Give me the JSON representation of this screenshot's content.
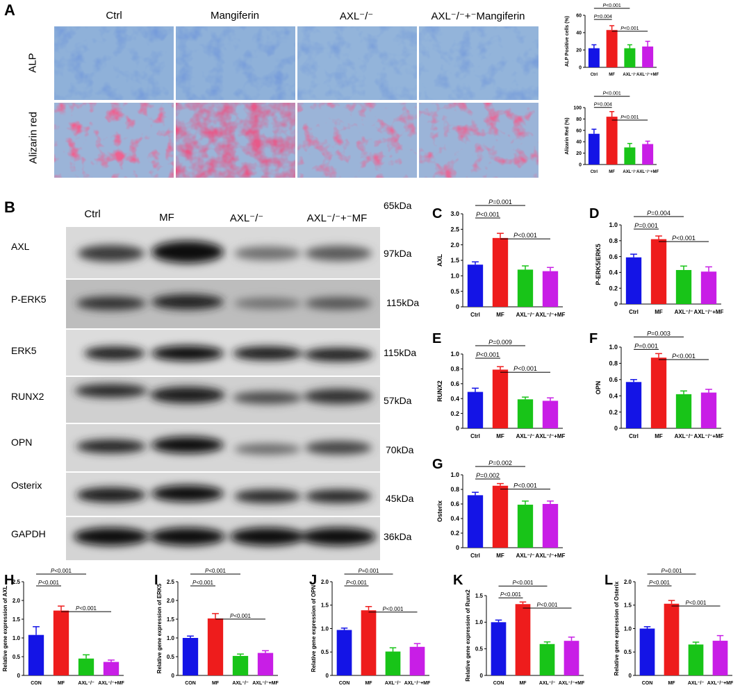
{
  "panelA": {
    "letter": "A",
    "columns": [
      "Ctrl",
      "Mangiferin",
      "AXL⁻/⁻",
      "AXL⁻/⁻+⁻Mangiferin"
    ],
    "rows": [
      "ALP",
      "Alizarin red"
    ],
    "colors": {
      "alp_bg": "#8fb1d9",
      "alp_stain": "#2f57b0",
      "ar_bg": "#9bb4d8",
      "ar_stain": "#d8234b"
    }
  },
  "panelB": {
    "letter": "B",
    "lanes": [
      "Ctrl",
      "MF",
      "AXL⁻/⁻",
      "AXL⁻/⁻+⁻MF"
    ],
    "top_kda": "65kDa",
    "rows": [
      {
        "label": "AXL",
        "kda": "97kDa"
      },
      {
        "label": "P-ERK5",
        "kda": "115kDa"
      },
      {
        "label": "ERK5",
        "kda": "115kDa"
      },
      {
        "label": "RUNX2",
        "kda": "57kDa"
      },
      {
        "label": "OPN",
        "kda": "70kDa"
      },
      {
        "label": "Osterix",
        "kda": "45kDa"
      },
      {
        "label": "GAPDH",
        "kda": "36kDa"
      }
    ]
  },
  "colors": {
    "ctrl": "#1414e6",
    "mf": "#ee1c1c",
    "axl": "#18c418",
    "axlmf": "#c81ee6"
  },
  "chart_data": [
    {
      "id": "A1",
      "type": "bar",
      "letter": "",
      "ylabel": "ALP Positive cells (%)",
      "categories": [
        "Ctrl",
        "MF",
        "AXL⁻/⁻",
        "AXL⁻/⁻+MF"
      ],
      "values": [
        22,
        43,
        22,
        24
      ],
      "errors": [
        4,
        5,
        4,
        6
      ],
      "ylim": [
        0,
        60
      ],
      "yticks": [
        "0",
        "20",
        "40",
        "60"
      ],
      "sig": [
        {
          "from": 0,
          "to": 1,
          "label": "P=0.004"
        },
        {
          "from": 0,
          "to": 2,
          "label": "P<0.001"
        },
        {
          "from": 1,
          "to": 3,
          "label": "P<0.001"
        }
      ]
    },
    {
      "id": "A2",
      "type": "bar",
      "letter": "",
      "ylabel": "Alizarin Red (%)",
      "categories": [
        "Ctrl",
        "MF",
        "AXL⁻/⁻",
        "AXL⁻/⁻+MF"
      ],
      "values": [
        54,
        84,
        30,
        36
      ],
      "errors": [
        8,
        9,
        7,
        5
      ],
      "ylim": [
        0,
        100
      ],
      "yticks": [
        "0",
        "20",
        "40",
        "60",
        "80",
        "100"
      ],
      "sig": [
        {
          "from": 0,
          "to": 1,
          "label": "P=0.004"
        },
        {
          "from": 0,
          "to": 2,
          "label": "P<0.001"
        },
        {
          "from": 1,
          "to": 3,
          "label": "P<0.001"
        }
      ]
    },
    {
      "id": "C",
      "type": "bar",
      "letter": "C",
      "ylabel": "AXL",
      "categories": [
        "Ctrl",
        "MF",
        "AXL⁻/⁻",
        "AXL⁻/⁻+MF"
      ],
      "values": [
        1.36,
        2.22,
        1.2,
        1.15
      ],
      "errors": [
        0.09,
        0.15,
        0.12,
        0.12
      ],
      "ylim": [
        0,
        3.0
      ],
      "yticks": [
        "0",
        "0.5",
        "1.0",
        "1.5",
        "2.0",
        "2.5",
        "3.0"
      ],
      "sig": [
        {
          "from": 0,
          "to": 1,
          "label": "P<0.001"
        },
        {
          "from": 0,
          "to": 2,
          "label": "P=0.001"
        },
        {
          "from": 1,
          "to": 3,
          "label": "P<0.001"
        }
      ]
    },
    {
      "id": "D",
      "type": "bar",
      "letter": "D",
      "ylabel": "P-ERK5/ERK5",
      "categories": [
        "Ctrl",
        "MF",
        "AXL⁻/⁻",
        "AXL⁻/⁻+MF"
      ],
      "values": [
        0.59,
        0.82,
        0.43,
        0.41
      ],
      "errors": [
        0.04,
        0.04,
        0.05,
        0.06
      ],
      "ylim": [
        0,
        1.0
      ],
      "yticks": [
        "0",
        "0.2",
        "0.4",
        "0.6",
        "0.8",
        "1.0"
      ],
      "sig": [
        {
          "from": 0,
          "to": 1,
          "label": "P=0.001"
        },
        {
          "from": 0,
          "to": 2,
          "label": "P=0.004"
        },
        {
          "from": 1,
          "to": 3,
          "label": "P<0.001"
        }
      ]
    },
    {
      "id": "E",
      "type": "bar",
      "letter": "E",
      "ylabel": "RUNX2",
      "categories": [
        "Ctrl",
        "MF",
        "AXL⁻/⁻",
        "AXL⁻/⁻+MF"
      ],
      "values": [
        0.49,
        0.79,
        0.39,
        0.37
      ],
      "errors": [
        0.05,
        0.04,
        0.03,
        0.04
      ],
      "ylim": [
        0,
        1.0
      ],
      "yticks": [
        "0",
        "0.2",
        "0.4",
        "0.6",
        "0.8",
        "1.0"
      ],
      "sig": [
        {
          "from": 0,
          "to": 1,
          "label": "P<0.001"
        },
        {
          "from": 0,
          "to": 2,
          "label": "P=0.009"
        },
        {
          "from": 1,
          "to": 3,
          "label": "P<0.001"
        }
      ]
    },
    {
      "id": "F",
      "type": "bar",
      "letter": "F",
      "ylabel": "OPN",
      "categories": [
        "Ctrl",
        "MF",
        "AXL⁻/⁻",
        "AXL⁻/⁻+MF"
      ],
      "values": [
        0.57,
        0.87,
        0.42,
        0.44
      ],
      "errors": [
        0.03,
        0.05,
        0.04,
        0.04
      ],
      "ylim": [
        0,
        1.0
      ],
      "yticks": [
        "0",
        "0.2",
        "0.4",
        "0.6",
        "0.8",
        "1.0"
      ],
      "sig": [
        {
          "from": 0,
          "to": 1,
          "label": "P=0.001"
        },
        {
          "from": 0,
          "to": 2,
          "label": "P=0.003"
        },
        {
          "from": 1,
          "to": 3,
          "label": "P<0.001"
        }
      ]
    },
    {
      "id": "G",
      "type": "bar",
      "letter": "G",
      "ylabel": "Osterix",
      "categories": [
        "Ctrl",
        "MF",
        "AXL⁻/⁻",
        "AXL⁻/⁻+MF"
      ],
      "values": [
        0.72,
        0.85,
        0.59,
        0.6
      ],
      "errors": [
        0.04,
        0.03,
        0.05,
        0.04
      ],
      "ylim": [
        0,
        1.0
      ],
      "yticks": [
        "0",
        "0.2",
        "0.4",
        "0.6",
        "0.8",
        "1.0"
      ],
      "sig": [
        {
          "from": 0,
          "to": 1,
          "label": "P=0.002"
        },
        {
          "from": 0,
          "to": 2,
          "label": "P=0.002"
        },
        {
          "from": 1,
          "to": 3,
          "label": "P<0.001"
        }
      ]
    },
    {
      "id": "H",
      "type": "bar",
      "letter": "H",
      "ylabel": "Relative gene expression of AXL",
      "categories": [
        "CON",
        "MF",
        "AXL⁻/⁻",
        "AXL⁻/⁻+MF"
      ],
      "values": [
        1.08,
        1.73,
        0.45,
        0.36
      ],
      "errors": [
        0.22,
        0.12,
        0.1,
        0.05
      ],
      "ylim": [
        0,
        2.5
      ],
      "yticks": [
        "0",
        "0.5",
        "1.0",
        "1.5",
        "2.0",
        "2.5"
      ],
      "sig": [
        {
          "from": 0,
          "to": 1,
          "label": "P<0.001"
        },
        {
          "from": 0,
          "to": 2,
          "label": "P<0.001"
        },
        {
          "from": 1,
          "to": 3,
          "label": "P<0.001"
        }
      ]
    },
    {
      "id": "I",
      "type": "bar",
      "letter": "I",
      "ylabel": "Relative gene expression of ERK5",
      "categories": [
        "CON",
        "MF",
        "AXL⁻/⁻",
        "AXL⁻/⁻+MF"
      ],
      "values": [
        1.0,
        1.52,
        0.52,
        0.6
      ],
      "errors": [
        0.05,
        0.13,
        0.05,
        0.06
      ],
      "ylim": [
        0,
        2.5
      ],
      "yticks": [
        "0",
        "0.5",
        "1.0",
        "1.5",
        "2.0",
        "2.5"
      ],
      "sig": [
        {
          "from": 0,
          "to": 1,
          "label": "P<0.001"
        },
        {
          "from": 0,
          "to": 2,
          "label": "P<0.001"
        },
        {
          "from": 1,
          "to": 3,
          "label": "P<0.001"
        }
      ]
    },
    {
      "id": "J",
      "type": "bar",
      "letter": "J",
      "ylabel": "Relative gene expression of OPN",
      "categories": [
        "CON",
        "MF",
        "AXL⁻/⁻",
        "AXL⁻/⁻+MF"
      ],
      "values": [
        0.97,
        1.39,
        0.51,
        0.61
      ],
      "errors": [
        0.04,
        0.08,
        0.08,
        0.07
      ],
      "ylim": [
        0,
        2.0
      ],
      "yticks": [
        "0",
        "0.5",
        "1.0",
        "1.5",
        "2.0"
      ],
      "sig": [
        {
          "from": 0,
          "to": 1,
          "label": "P<0.001"
        },
        {
          "from": 0,
          "to": 2,
          "label": "P=0.001"
        },
        {
          "from": 1,
          "to": 3,
          "label": "P<0.001"
        }
      ]
    },
    {
      "id": "K",
      "type": "bar",
      "letter": "K",
      "ylabel": "Relative gene expression of Runx2",
      "categories": [
        "CON",
        "MF",
        "AXL⁻/⁻",
        "AXL⁻/⁻+MF"
      ],
      "values": [
        1.0,
        1.34,
        0.59,
        0.65
      ],
      "errors": [
        0.04,
        0.04,
        0.04,
        0.07
      ],
      "ylim": [
        0,
        1.5
      ],
      "yticks": [
        "0",
        "0.5",
        "1.0",
        "1.5"
      ],
      "sig": [
        {
          "from": 0,
          "to": 1,
          "label": "P<0.001"
        },
        {
          "from": 0,
          "to": 2,
          "label": "P<0.001"
        },
        {
          "from": 1,
          "to": 3,
          "label": "P<0.001"
        }
      ]
    },
    {
      "id": "L",
      "type": "bar",
      "letter": "L",
      "ylabel": "Relative gene expression of Osterix",
      "categories": [
        "CON",
        "MF",
        "AXL⁻/⁻",
        "AXL⁻/⁻+MF"
      ],
      "values": [
        1.0,
        1.53,
        0.66,
        0.74
      ],
      "errors": [
        0.04,
        0.07,
        0.05,
        0.11
      ],
      "ylim": [
        0,
        2.0
      ],
      "yticks": [
        "0",
        "0.5",
        "1.0",
        "1.5",
        "2.0"
      ],
      "sig": [
        {
          "from": 0,
          "to": 1,
          "label": "P<0.001"
        },
        {
          "from": 0,
          "to": 2,
          "label": "P=0.001"
        },
        {
          "from": 1,
          "to": 3,
          "label": "P<0.001"
        }
      ]
    }
  ]
}
